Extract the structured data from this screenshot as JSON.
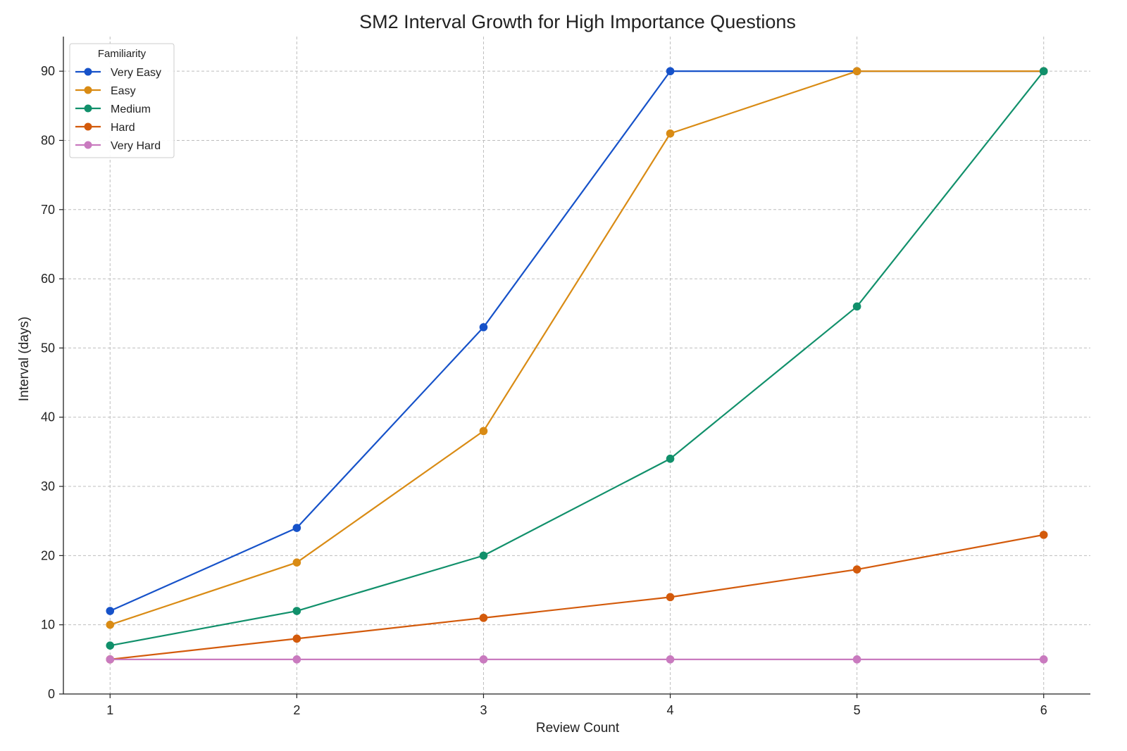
{
  "chart_data": {
    "type": "line",
    "title": "SM2 Interval Growth for High Importance Questions",
    "xlabel": "Review Count",
    "ylabel": "Interval (days)",
    "x": [
      1,
      2,
      3,
      4,
      5,
      6
    ],
    "xticks": [
      "1",
      "2",
      "3",
      "4",
      "5",
      "6"
    ],
    "yticks": [
      "0",
      "10",
      "20",
      "30",
      "40",
      "50",
      "60",
      "70",
      "80",
      "90"
    ],
    "xlim": [
      0.75,
      6.25
    ],
    "ylim": [
      0,
      95
    ],
    "grid": true,
    "legend": {
      "title": "Familiarity",
      "placement": "top-left"
    },
    "series": [
      {
        "name": "Very Easy",
        "color": "#1652c9",
        "values": [
          12,
          24,
          53,
          90,
          90,
          90
        ]
      },
      {
        "name": "Easy",
        "color": "#d98b14",
        "values": [
          10,
          19,
          38,
          81,
          90,
          90
        ]
      },
      {
        "name": "Medium",
        "color": "#11906b",
        "values": [
          7,
          12,
          20,
          34,
          56,
          90
        ]
      },
      {
        "name": "Hard",
        "color": "#d35a0b",
        "values": [
          5,
          8,
          11,
          14,
          18,
          23
        ]
      },
      {
        "name": "Very Hard",
        "color": "#c97abf",
        "values": [
          5,
          5,
          5,
          5,
          5,
          5
        ]
      }
    ]
  }
}
